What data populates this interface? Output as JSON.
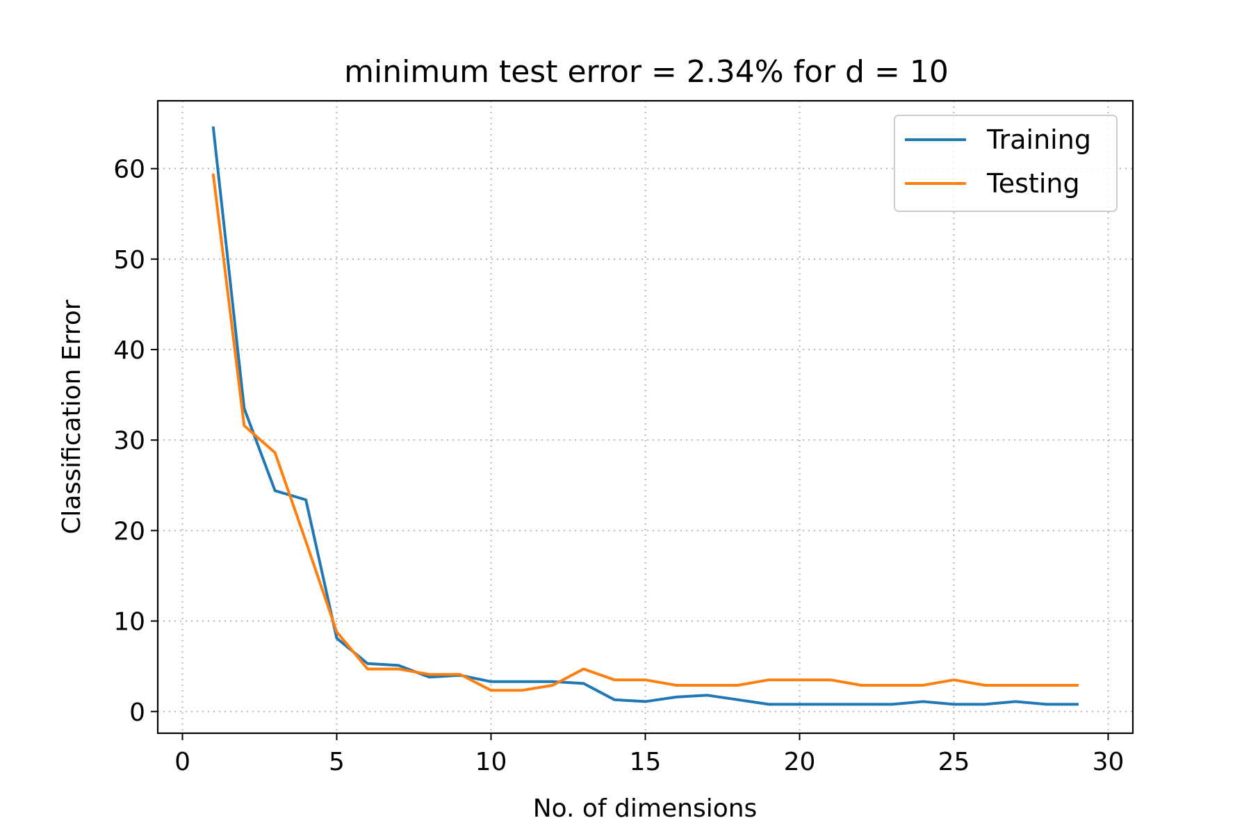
{
  "chart_data": {
    "type": "line",
    "title": "minimum test error = 2.34% for d = 10",
    "xlabel": "No. of dimensions",
    "ylabel": "Classification Error",
    "xlim": [
      -0.8,
      30.8
    ],
    "ylim": [
      -2.4,
      67.5
    ],
    "xticks": [
      0,
      5,
      10,
      15,
      20,
      25,
      30
    ],
    "yticks": [
      0,
      10,
      20,
      30,
      40,
      50,
      60
    ],
    "grid": true,
    "legend_position": "top-right",
    "x": [
      1,
      2,
      3,
      4,
      5,
      6,
      7,
      8,
      9,
      10,
      11,
      12,
      13,
      14,
      15,
      16,
      17,
      18,
      19,
      20,
      21,
      22,
      23,
      24,
      25,
      26,
      27,
      28,
      29
    ],
    "series": [
      {
        "name": "Training",
        "color": "#1f77b4",
        "values": [
          64.5,
          33.5,
          24.4,
          23.4,
          8.1,
          5.3,
          5.1,
          3.8,
          4.0,
          3.3,
          3.3,
          3.3,
          3.1,
          1.3,
          1.1,
          1.6,
          1.8,
          1.3,
          0.8,
          0.8,
          0.8,
          0.8,
          0.8,
          1.1,
          0.8,
          0.8,
          1.1,
          0.8,
          0.8
        ]
      },
      {
        "name": "Testing",
        "color": "#ff7f0e",
        "values": [
          59.3,
          31.6,
          28.6,
          18.8,
          8.8,
          4.7,
          4.7,
          4.1,
          4.1,
          2.34,
          2.34,
          2.9,
          4.7,
          3.5,
          3.5,
          2.9,
          2.9,
          2.9,
          3.5,
          3.5,
          3.5,
          2.9,
          2.9,
          2.9,
          3.5,
          2.9,
          2.9,
          2.9,
          2.9
        ]
      }
    ]
  }
}
